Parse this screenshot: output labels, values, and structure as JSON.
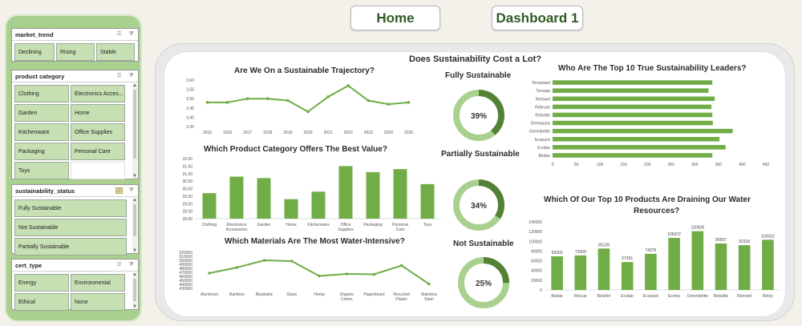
{
  "nav": {
    "home_label": "Home",
    "dashboard_label": "Dashboard 1"
  },
  "slicers": {
    "market_trend": {
      "title": "market_trend",
      "items": [
        "Declining",
        "Rising",
        "Stable"
      ]
    },
    "product_category": {
      "title": "product category",
      "items": [
        "Clothing",
        "Electronics Acces...",
        "Garden",
        "Home",
        "Kitchenware",
        "Office Supplies",
        "Packaging",
        "Personal Care",
        "Toys"
      ]
    },
    "sustainability_status": {
      "title": "sustainability_status",
      "items": [
        "Fully Sustainable",
        "Not Sustainable",
        "Partially Sustainable"
      ]
    },
    "cert_type": {
      "title": "cert_type",
      "items": [
        "Energy",
        "Environmental",
        "Ethical",
        "None"
      ]
    }
  },
  "dashboard": {
    "main_title": "Does Sustainability Cost a Lot?",
    "trajectory_title": "Are We On a Sustainable Trajectory?",
    "value_title": "Which Product Category Offers The Best Value?",
    "materials_title": "Which Materials Are The Most Water-Intensive?",
    "leaders_title": "Who Are The Top 10 True Sustainability Leaders?",
    "water_title_line1": "Which Of Our Top 10 Products Are Draining Our Water",
    "water_title_line2": "Resources?",
    "donuts": [
      {
        "label": "Fully Sustainable",
        "value_label": "39%",
        "value": 0.39
      },
      {
        "label": "Partially Sustainable",
        "value_label": "34%",
        "value": 0.34
      },
      {
        "label": "Not Sustainable",
        "value_label": "25%",
        "value": 0.25
      }
    ],
    "colors": {
      "accent": "#70ad47",
      "accent_dark": "#548235",
      "light": "#a9d08e",
      "panel": "#a9d08e"
    }
  },
  "chart_data": [
    {
      "id": "trajectory",
      "type": "line",
      "title": "Are We On a Sustainable Trajectory?",
      "x": [
        "2015",
        "2016",
        "2017",
        "2018",
        "2019",
        "2020",
        "2021",
        "2022",
        "2023",
        "2024",
        "2025"
      ],
      "values": [
        3.48,
        3.48,
        3.5,
        3.5,
        3.49,
        3.43,
        3.51,
        3.57,
        3.49,
        3.47,
        3.48
      ],
      "yticks": [
        "3.60",
        "3.55",
        "3.50",
        "3.45",
        "3.40",
        "3.35"
      ],
      "ylim": [
        3.35,
        3.6
      ]
    },
    {
      "id": "value",
      "type": "bar",
      "title": "Which Product Category Offers The Best Value?",
      "categories": [
        "Clothing",
        "Electronics Accessories",
        "Garden",
        "Home",
        "Kitchenware",
        "Office Supplies",
        "Packaging",
        "Personal Care",
        "Toys"
      ],
      "values": [
        29.7,
        30.8,
        30.7,
        29.3,
        29.8,
        31.5,
        31.1,
        31.3,
        30.3
      ],
      "yticks": [
        "32.00",
        "31.50",
        "31.00",
        "30.50",
        "30.00",
        "29.50",
        "29.00",
        "28.50",
        "28.00"
      ],
      "ylim": [
        28.0,
        32.0
      ]
    },
    {
      "id": "materials",
      "type": "line",
      "title": "Which Materials Are The Most Water-Intensive?",
      "x": [
        "Aluminum",
        "Bamboo",
        "Bioplastic",
        "Glass",
        "Hemp",
        "Organic Cotton",
        "Paperboard",
        "Recycled Plastic",
        "Stainless Steel"
      ],
      "values": [
        468000,
        482000,
        500000,
        498000,
        461000,
        466000,
        465000,
        487000,
        441000
      ],
      "yticks": [
        "520000",
        "510000",
        "500000",
        "490000",
        "480000",
        "470000",
        "460000",
        "450000",
        "440000",
        "430000"
      ],
      "ylim": [
        430000,
        520000
      ]
    },
    {
      "id": "leaders",
      "type": "bar",
      "title": "Who Are The Top 10 True Sustainability Leaders?",
      "categories": [
        "Terratowel",
        "Terrasip",
        "Retowel",
        "Rebrush",
        "Rebottle",
        "Greenpack",
        "Greenbottle",
        "Ecopack",
        "Ecobar",
        "Biobar"
      ],
      "values": [
        337,
        329,
        342,
        335,
        337,
        338,
        380,
        352,
        365,
        337
      ],
      "xticks": [
        "0",
        "50",
        "100",
        "150",
        "200",
        "250",
        "300",
        "350",
        "400",
        "450"
      ],
      "xlim": [
        0,
        450
      ]
    },
    {
      "id": "water",
      "type": "bar",
      "title": "Which Of Our Top 10 Products Are Draining Our Water Resources?",
      "categories": [
        "Biobar",
        "Biocup",
        "Bioshirt",
        "Ecobar",
        "Ecopack",
        "Ecotoy",
        "Greenbottle",
        "Rebottle",
        "Retowel",
        "Retoy"
      ],
      "values": [
        69203,
        71009,
        85128,
        57351,
        74276,
        106972,
        120839,
        95597,
        92118,
        103332
      ],
      "labels": [
        "69203",
        "71009",
        "85128",
        "57351",
        "74276",
        "106972",
        "120839",
        "95597",
        "92118",
        "103332"
      ],
      "yticks": [
        "140000",
        "120000",
        "100000",
        "80000",
        "60000",
        "40000",
        "20000",
        "0"
      ],
      "ylim": [
        0,
        140000
      ]
    }
  ]
}
